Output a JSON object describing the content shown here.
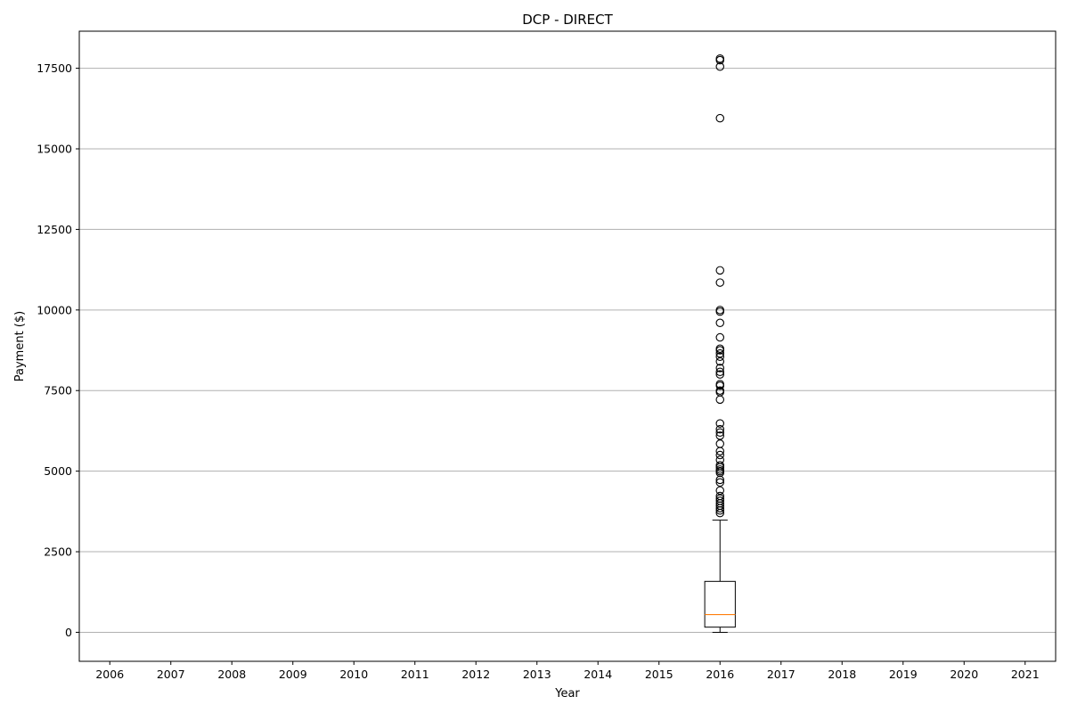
{
  "chart_data": {
    "type": "box",
    "title": "DCP - DIRECT",
    "xlabel": "Year",
    "ylabel": "Payment ($)",
    "categories": [
      "2006",
      "2007",
      "2008",
      "2009",
      "2010",
      "2011",
      "2012",
      "2013",
      "2014",
      "2015",
      "2016",
      "2017",
      "2018",
      "2019",
      "2020",
      "2021"
    ],
    "ylim": [
      -900,
      18650
    ],
    "yticks": [
      0,
      2500,
      5000,
      7500,
      10000,
      12500,
      15000,
      17500
    ],
    "grid": "y",
    "boxes": [
      {
        "category": "2016",
        "whisker_low": 0,
        "q1": 160,
        "median": 550,
        "q3": 1580,
        "whisker_high": 3480,
        "outliers": [
          3700,
          3780,
          3850,
          3930,
          4000,
          4080,
          4150,
          4230,
          4400,
          4650,
          4730,
          4950,
          5000,
          5050,
          5120,
          5180,
          5350,
          5500,
          5620,
          5850,
          6100,
          6200,
          6300,
          6480,
          7220,
          7450,
          7500,
          7650,
          7700,
          8000,
          8080,
          8200,
          8400,
          8550,
          8650,
          8750,
          8800,
          9150,
          9600,
          9950,
          10000,
          10850,
          11230,
          15950,
          17550,
          17750,
          17800
        ]
      }
    ],
    "colors": {
      "box": "#000000",
      "median": "#ff7f0e",
      "grid": "#b0b0b0",
      "outlier_edge": "#000000"
    }
  }
}
